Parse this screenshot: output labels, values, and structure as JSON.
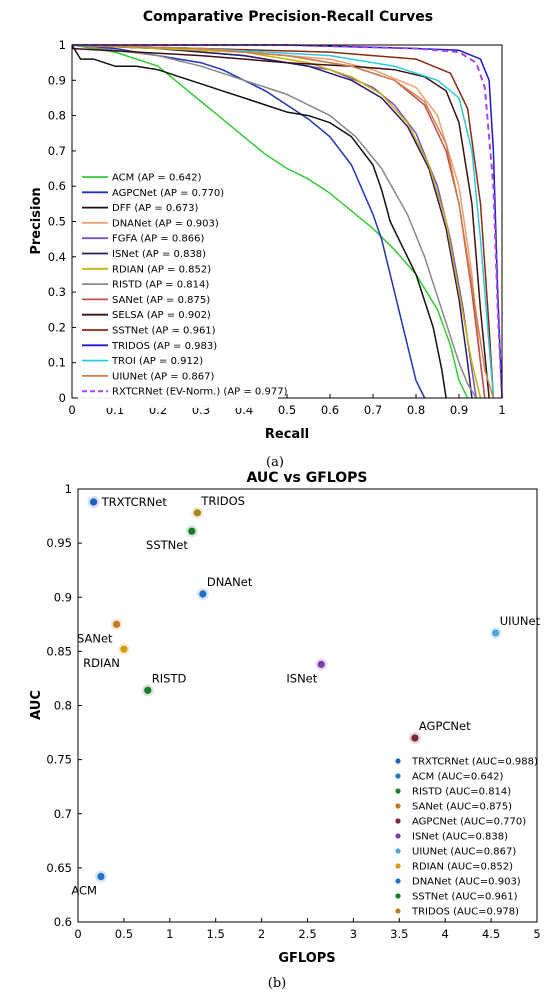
{
  "chart_data": [
    {
      "type": "line",
      "title": "Comparative Precision-Recall Curves",
      "xlabel": "Recall",
      "ylabel": "Precision",
      "xlim": [
        0,
        1
      ],
      "ylim": [
        0,
        1
      ],
      "xticks": [
        "0",
        "0.1",
        "0.2",
        "0.3",
        "0.4",
        "0.5",
        "0.6",
        "0.7",
        "0.8",
        "0.9",
        "1"
      ],
      "yticks": [
        "0",
        "0.1",
        "0.2",
        "0.3",
        "0.4",
        "0.5",
        "0.6",
        "0.7",
        "0.8",
        "0.9",
        "1"
      ],
      "grid": false,
      "legend_position": "left-center",
      "caption": "(a)",
      "series": [
        {
          "name": "ACM (AP = 0.642)",
          "color": "#33cc33",
          "dash": false,
          "x": [
            0,
            0.05,
            0.1,
            0.15,
            0.2,
            0.25,
            0.3,
            0.35,
            0.4,
            0.45,
            0.5,
            0.55,
            0.6,
            0.65,
            0.7,
            0.75,
            0.8,
            0.85,
            0.88,
            0.9,
            0.92
          ],
          "y": [
            1,
            0.99,
            0.98,
            0.96,
            0.94,
            0.89,
            0.84,
            0.79,
            0.74,
            0.69,
            0.65,
            0.62,
            0.58,
            0.53,
            0.48,
            0.42,
            0.35,
            0.25,
            0.15,
            0.05,
            0
          ]
        },
        {
          "name": "AGPCNet (AP = 0.770)",
          "color": "#2233bb",
          "dash": false,
          "x": [
            0,
            0.1,
            0.2,
            0.3,
            0.35,
            0.4,
            0.45,
            0.5,
            0.55,
            0.6,
            0.65,
            0.7,
            0.72,
            0.75,
            0.78,
            0.8,
            0.82
          ],
          "y": [
            1,
            0.99,
            0.97,
            0.95,
            0.93,
            0.9,
            0.87,
            0.83,
            0.79,
            0.74,
            0.66,
            0.52,
            0.45,
            0.3,
            0.15,
            0.05,
            0
          ]
        },
        {
          "name": "DFF (AP = 0.673)",
          "color": "#111111",
          "dash": false,
          "x": [
            0,
            0.01,
            0.02,
            0.05,
            0.1,
            0.15,
            0.2,
            0.25,
            0.3,
            0.35,
            0.4,
            0.45,
            0.5,
            0.55,
            0.6,
            0.65,
            0.7,
            0.72,
            0.74,
            0.76,
            0.8,
            0.84,
            0.86,
            0.87
          ],
          "y": [
            1,
            0.98,
            0.96,
            0.96,
            0.94,
            0.94,
            0.93,
            0.91,
            0.89,
            0.87,
            0.85,
            0.83,
            0.81,
            0.8,
            0.78,
            0.74,
            0.66,
            0.59,
            0.5,
            0.45,
            0.35,
            0.2,
            0.08,
            0
          ]
        },
        {
          "name": "DNANet (AP = 0.903)",
          "color": "#f0a070",
          "dash": false,
          "x": [
            0,
            0.2,
            0.4,
            0.6,
            0.7,
            0.8,
            0.85,
            0.9,
            0.93,
            0.95,
            0.96
          ],
          "y": [
            1,
            0.99,
            0.98,
            0.96,
            0.93,
            0.88,
            0.8,
            0.6,
            0.35,
            0.1,
            0
          ]
        },
        {
          "name": "FGFA (AP = 0.866)",
          "color": "#7a4fd0",
          "dash": false,
          "x": [
            0,
            0.2,
            0.4,
            0.6,
            0.7,
            0.75,
            0.8,
            0.85,
            0.88,
            0.91,
            0.93,
            0.94
          ],
          "y": [
            1,
            0.99,
            0.97,
            0.93,
            0.88,
            0.83,
            0.75,
            0.6,
            0.45,
            0.25,
            0.08,
            0
          ]
        },
        {
          "name": "ISNet (AP = 0.838)",
          "color": "#2a1a6e",
          "dash": false,
          "x": [
            0,
            0.2,
            0.4,
            0.55,
            0.65,
            0.72,
            0.78,
            0.83,
            0.87,
            0.9,
            0.92,
            0.93
          ],
          "y": [
            1,
            0.99,
            0.97,
            0.94,
            0.9,
            0.85,
            0.77,
            0.65,
            0.48,
            0.28,
            0.1,
            0
          ]
        },
        {
          "name": "RDIAN (AP = 0.852)",
          "color": "#c8b400",
          "dash": false,
          "x": [
            0,
            0.2,
            0.4,
            0.55,
            0.65,
            0.72,
            0.78,
            0.83,
            0.87,
            0.9,
            0.93,
            0.95
          ],
          "y": [
            1,
            0.99,
            0.98,
            0.95,
            0.91,
            0.86,
            0.78,
            0.66,
            0.5,
            0.3,
            0.1,
            0
          ]
        },
        {
          "name": "RISTD (AP = 0.814)",
          "color": "#888888",
          "dash": false,
          "x": [
            0,
            0.2,
            0.3,
            0.4,
            0.5,
            0.6,
            0.66,
            0.72,
            0.78,
            0.82,
            0.86,
            0.9,
            0.92,
            0.94
          ],
          "y": [
            1,
            0.97,
            0.94,
            0.9,
            0.86,
            0.8,
            0.74,
            0.65,
            0.52,
            0.4,
            0.25,
            0.1,
            0.04,
            0
          ]
        },
        {
          "name": "SANet (AP = 0.875)",
          "color": "#c0504d",
          "dash": false,
          "x": [
            0,
            0.3,
            0.5,
            0.65,
            0.75,
            0.82,
            0.87,
            0.9,
            0.93,
            0.95,
            0.96
          ],
          "y": [
            1,
            0.99,
            0.97,
            0.94,
            0.9,
            0.83,
            0.7,
            0.55,
            0.3,
            0.1,
            0
          ]
        },
        {
          "name": "SELSA (AP = 0.902)",
          "color": "#3b1010",
          "dash": false,
          "x": [
            0,
            0.3,
            0.5,
            0.65,
            0.75,
            0.82,
            0.87,
            0.9,
            0.93,
            0.95,
            0.97
          ],
          "y": [
            0.99,
            0.97,
            0.95,
            0.94,
            0.93,
            0.91,
            0.87,
            0.78,
            0.55,
            0.25,
            0
          ]
        },
        {
          "name": "SSTNet (AP = 0.961)",
          "color": "#8b2a10",
          "dash": false,
          "x": [
            0,
            0.3,
            0.6,
            0.8,
            0.88,
            0.92,
            0.95,
            0.97,
            0.98
          ],
          "y": [
            1,
            0.99,
            0.98,
            0.96,
            0.92,
            0.82,
            0.55,
            0.2,
            0
          ]
        },
        {
          "name": "TRIDOS (AP = 0.983)",
          "color": "#1a1acc",
          "dash": false,
          "x": [
            0,
            0.5,
            0.8,
            0.9,
            0.95,
            0.97,
            0.98,
            0.99,
            1.0
          ],
          "y": [
            1,
            1,
            0.99,
            0.985,
            0.96,
            0.9,
            0.7,
            0.3,
            0
          ]
        },
        {
          "name": "TROI (AP = 0.912)",
          "color": "#2ec8e0",
          "dash": false,
          "x": [
            0,
            0.3,
            0.6,
            0.75,
            0.85,
            0.9,
            0.93,
            0.95,
            0.97,
            0.98
          ],
          "y": [
            1,
            0.99,
            0.97,
            0.94,
            0.9,
            0.85,
            0.7,
            0.45,
            0.15,
            0
          ]
        },
        {
          "name": "UIUNet (AP = 0.867)",
          "color": "#d08050",
          "dash": false,
          "x": [
            0,
            0.3,
            0.5,
            0.65,
            0.75,
            0.82,
            0.87,
            0.9,
            0.93,
            0.96,
            0.98
          ],
          "y": [
            1,
            0.99,
            0.97,
            0.94,
            0.9,
            0.84,
            0.72,
            0.55,
            0.32,
            0.08,
            0
          ]
        },
        {
          "name": "RXTCRNet (EV-Norm.) (AP = 0.977)",
          "color": "#aa44ee",
          "dash": true,
          "x": [
            0,
            0.5,
            0.8,
            0.9,
            0.94,
            0.96,
            0.98,
            0.99,
            1.0
          ],
          "y": [
            1,
            1,
            0.99,
            0.98,
            0.95,
            0.88,
            0.6,
            0.25,
            0
          ]
        }
      ]
    },
    {
      "type": "scatter",
      "title": "AUC vs GFLOPS",
      "xlabel": "GFLOPS",
      "ylabel": "AUC",
      "xlim": [
        0,
        5
      ],
      "ylim": [
        0.6,
        1
      ],
      "xticks": [
        "0",
        "0.5",
        "1",
        "1.5",
        "2",
        "2.5",
        "3",
        "3.5",
        "4",
        "4.5",
        "5"
      ],
      "yticks": [
        "0.6",
        "0.65",
        "0.7",
        "0.75",
        "0.8",
        "0.85",
        "0.9",
        "0.95",
        "1"
      ],
      "grid": false,
      "legend_position": "bottom-right",
      "caption": "(b)",
      "points": [
        {
          "label": "TRXTCRNet",
          "legend": "TRXTCRNet (AUC=0.988)",
          "x": 0.17,
          "y": 0.988,
          "color": "#1f5fbf",
          "label_side": "right"
        },
        {
          "label": "ACM",
          "legend": "ACM (AUC=0.642)",
          "x": 0.25,
          "y": 0.642,
          "color": "#1f77c4",
          "label_side": "below-left"
        },
        {
          "label": "RISTD",
          "legend": "RISTD (AUC=0.814)",
          "x": 0.76,
          "y": 0.814,
          "color": "#1f7a2a",
          "label_side": "above-right"
        },
        {
          "label": "SANet",
          "legend": "SANet (AUC=0.875)",
          "x": 0.42,
          "y": 0.875,
          "color": "#c07a20",
          "label_side": "below-left"
        },
        {
          "label": "AGPCNet",
          "legend": "AGPCNet (AUC=0.770)",
          "x": 3.67,
          "y": 0.77,
          "color": "#7a2a35",
          "label_side": "above-right"
        },
        {
          "label": "ISNet",
          "legend": "ISNet (AUC=0.838)",
          "x": 2.65,
          "y": 0.838,
          "color": "#7a3fa0",
          "label_side": "below-left"
        },
        {
          "label": "UIUNet",
          "legend": "UIUNet (AUC=0.867)",
          "x": 4.55,
          "y": 0.867,
          "color": "#4aa8d8",
          "label_side": "above-right"
        },
        {
          "label": "RDIAN",
          "legend": "RDIAN (AUC=0.852)",
          "x": 0.5,
          "y": 0.852,
          "color": "#d89a10",
          "label_side": "below-left"
        },
        {
          "label": "DNANet",
          "legend": "DNANet (AUC=0.903)",
          "x": 1.36,
          "y": 0.903,
          "color": "#1f6fc4",
          "label_side": "above-right"
        },
        {
          "label": "SSTNet",
          "legend": "SSTNet (AUC=0.961)",
          "x": 1.24,
          "y": 0.961,
          "color": "#1a7a20",
          "label_side": "below-left"
        },
        {
          "label": "TRIDOS",
          "legend": "TRIDOS (AUC=0.978)",
          "x": 1.3,
          "y": 0.978,
          "color": "#a8861a",
          "label_side": "above-right"
        }
      ]
    }
  ]
}
